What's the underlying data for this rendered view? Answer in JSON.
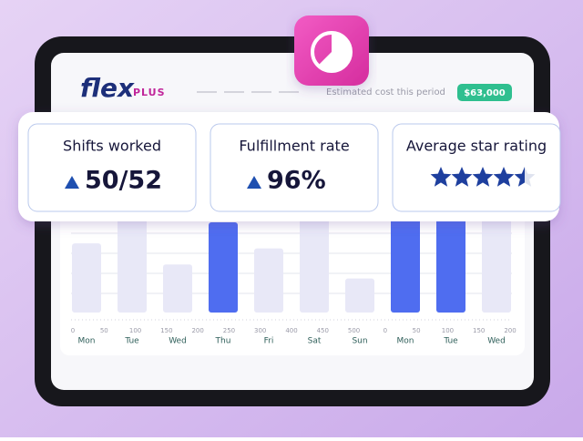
{
  "header": {
    "logo": "flex",
    "logo_suffix": "PLUS",
    "cost_label": "Estimated cost this period",
    "cost_value": "$63,000"
  },
  "cards": [
    {
      "title": "Shifts worked",
      "value": "50/52"
    },
    {
      "title": "Fulfillment rate",
      "value": "96%"
    },
    {
      "title": "Average star rating",
      "rating": 4.5,
      "max": 5
    }
  ],
  "chart": {
    "days": [
      "Mon",
      "Tue",
      "Wed",
      "Thu",
      "Fri",
      "Sat",
      "Sun",
      "Mon",
      "Tue",
      "Wed"
    ],
    "values": [
      69,
      100,
      48,
      90,
      64,
      95,
      34,
      95,
      100,
      100
    ],
    "highlighted": [
      false,
      false,
      false,
      true,
      false,
      false,
      false,
      true,
      true,
      false
    ],
    "ylim": [
      0,
      100
    ],
    "axis_numbers": [
      "0",
      "50",
      "100",
      "150",
      "200",
      "250",
      "300",
      "400",
      "450",
      "500",
      "0",
      "50",
      "100",
      "150",
      "200"
    ]
  }
}
